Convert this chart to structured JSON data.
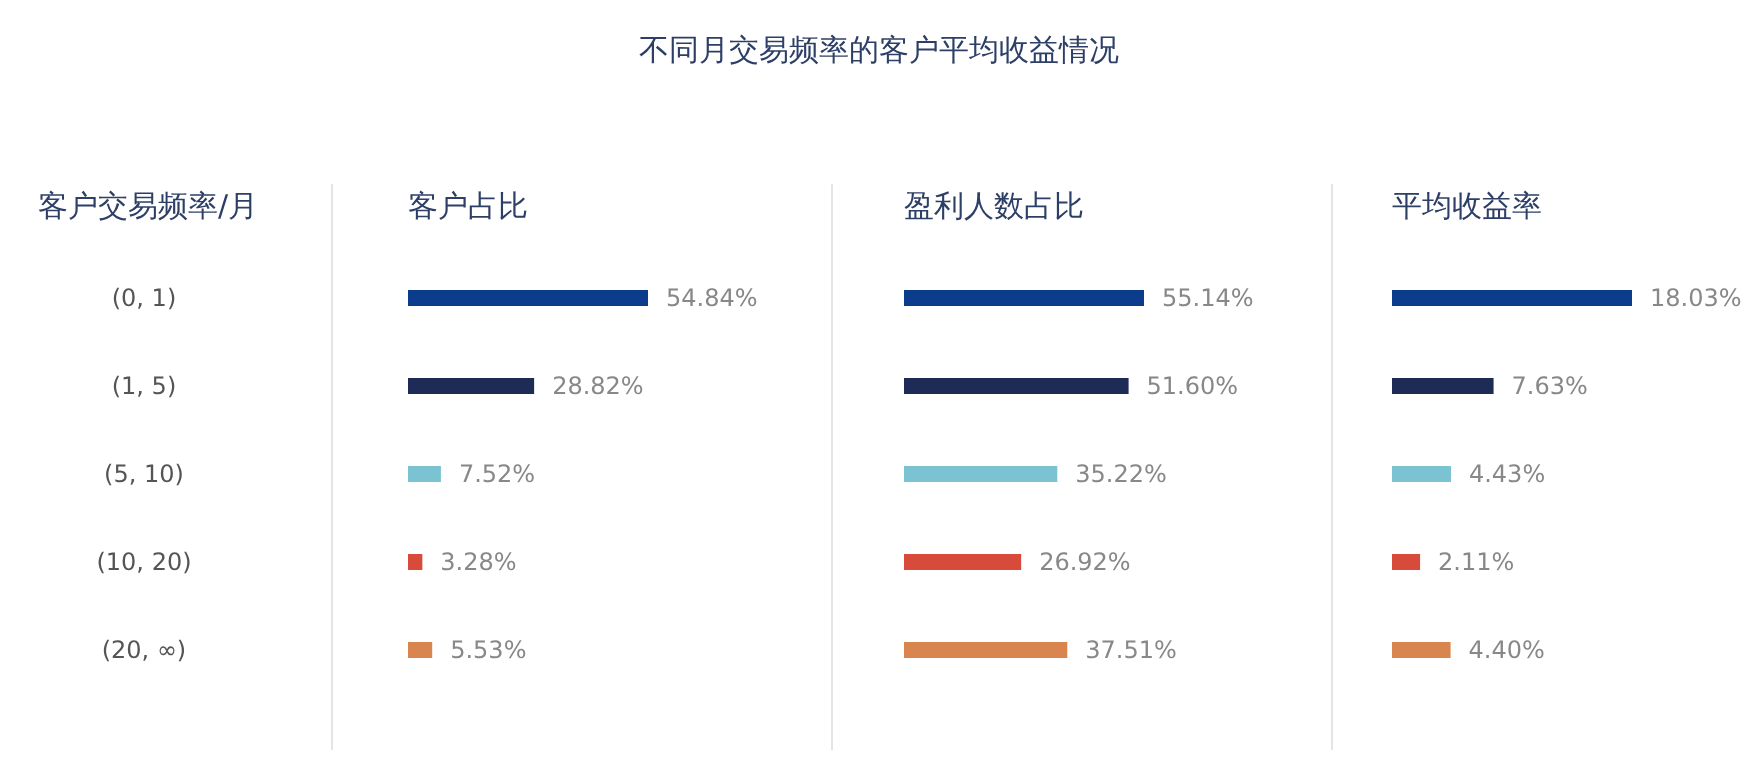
{
  "chart_data": [
    {
      "type": "bar",
      "orientation": "horizontal",
      "title": "客户占比",
      "ylabel": "客户交易频率/月",
      "categories": [
        "(0, 1)",
        "(1, 5)",
        "(5, 10)",
        "(10, 20)",
        "(20, ∞)"
      ],
      "values": [
        54.84,
        28.82,
        7.52,
        3.28,
        5.53
      ],
      "colors": [
        "#0c3c8c",
        "#1e2b57",
        "#7bc3d3",
        "#d84b3b",
        "#d9854f"
      ],
      "value_labels": [
        "54.84%",
        "28.82%",
        "7.52%",
        "3.28%",
        "5.53%"
      ],
      "tick_labels": "y",
      "annotations": [
        "不同月交易频率的客户平均收益情况"
      ]
    },
    {
      "type": "bar",
      "orientation": "horizontal",
      "title": "盈利人数占比",
      "values": [
        55.14,
        51.6,
        35.22,
        26.92,
        37.51
      ],
      "colors": [
        "#0c3c8c",
        "#1e2b57",
        "#7bc3d3",
        "#d84b3b",
        "#d9854f"
      ],
      "value_labels": [
        "55.14%",
        "51.60%",
        "35.22%",
        "26.92%",
        "37.51%"
      ],
      "tick_labels": false
    },
    {
      "type": "bar",
      "orientation": "horizontal",
      "title": "平均收益率",
      "values": [
        18.03,
        7.63,
        4.43,
        2.11,
        4.4
      ],
      "colors": [
        "#0c3c8c",
        "#1e2b57",
        "#7bc3d3",
        "#d84b3b",
        "#d9854f"
      ],
      "value_labels": [
        "18.03%",
        "7.63%",
        "4.43%",
        "2.11%",
        "4.40%"
      ],
      "tick_labels": false
    }
  ]
}
